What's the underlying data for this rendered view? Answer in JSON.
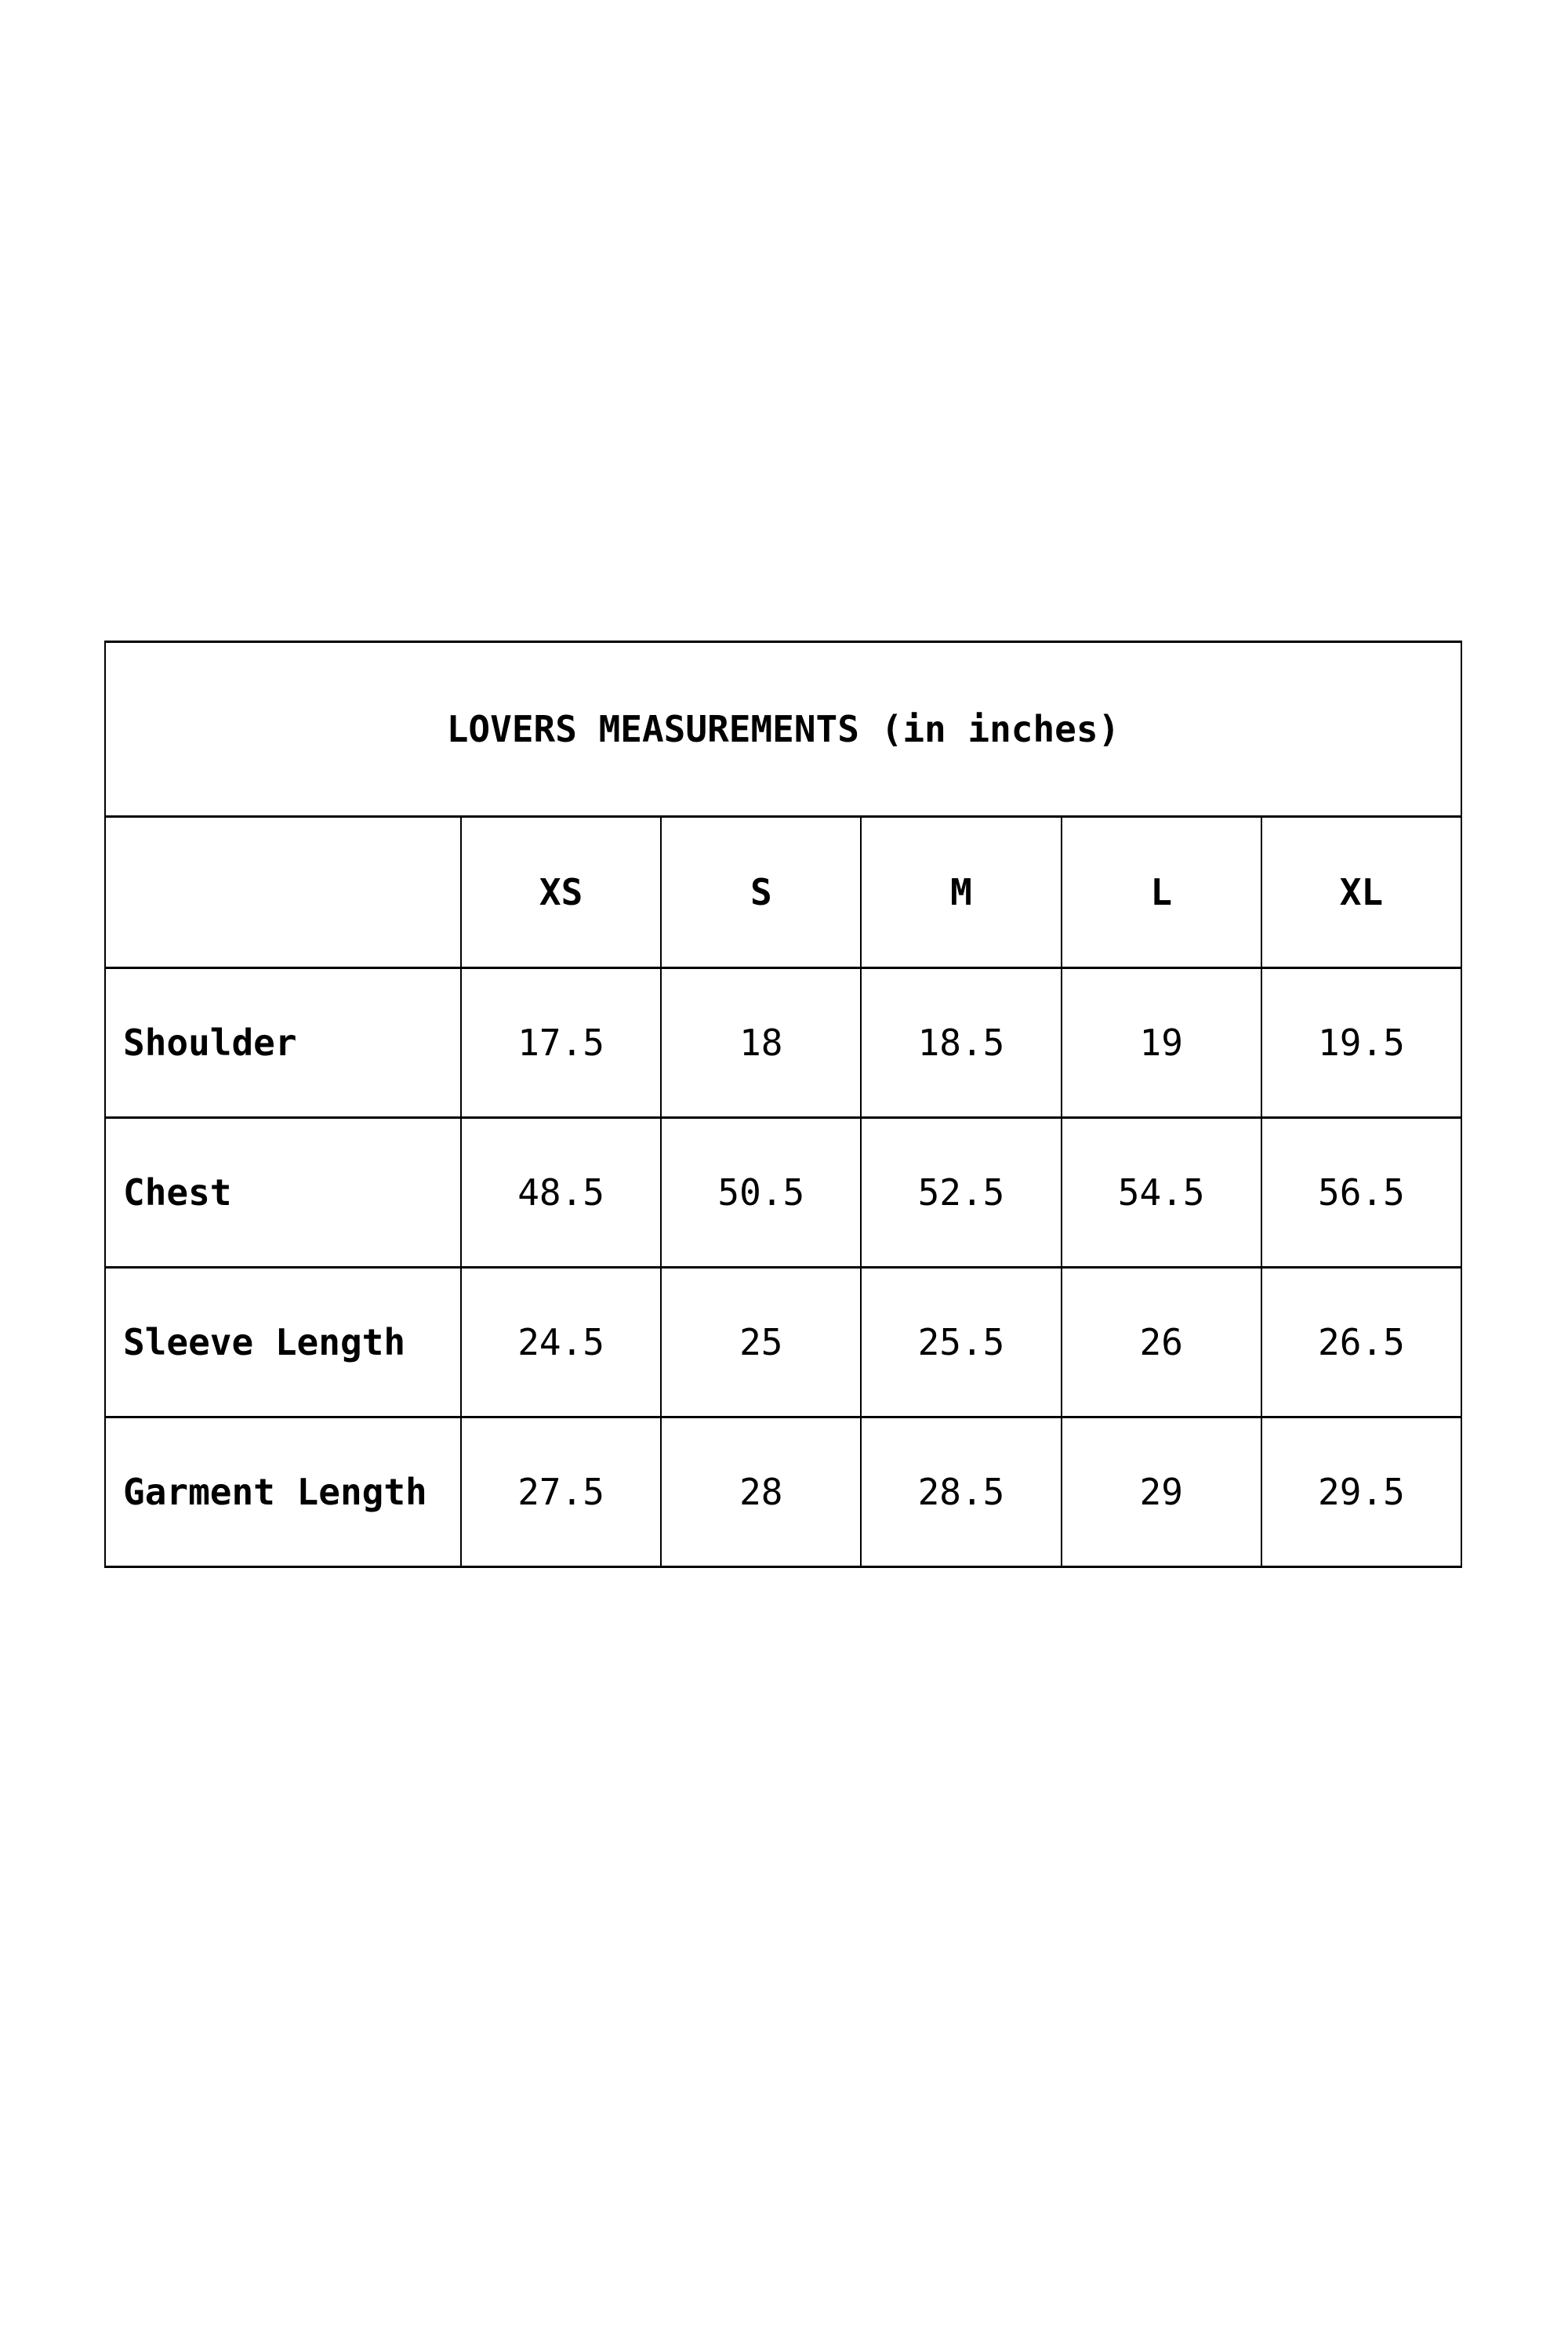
{
  "page": {
    "background": "#ffffff",
    "text_color": "#000000",
    "border_color": "#000000"
  },
  "size_chart": {
    "title": "LOVERS MEASUREMENTS (in inches)",
    "size_headers": [
      "XS",
      "S",
      "M",
      "L",
      "XL"
    ],
    "rows": [
      {
        "label": "Shoulder",
        "values": [
          "17.5",
          "18",
          "18.5",
          "19",
          "19.5"
        ]
      },
      {
        "label": "Chest",
        "values": [
          "48.5",
          "50.5",
          "52.5",
          "54.5",
          "56.5"
        ]
      },
      {
        "label": "Sleeve Length",
        "values": [
          "24.5",
          "25",
          "25.5",
          "26",
          "26.5"
        ]
      },
      {
        "label": "Garment Length",
        "values": [
          "27.5",
          "28",
          "28.5",
          "29",
          "29.5"
        ]
      }
    ]
  }
}
